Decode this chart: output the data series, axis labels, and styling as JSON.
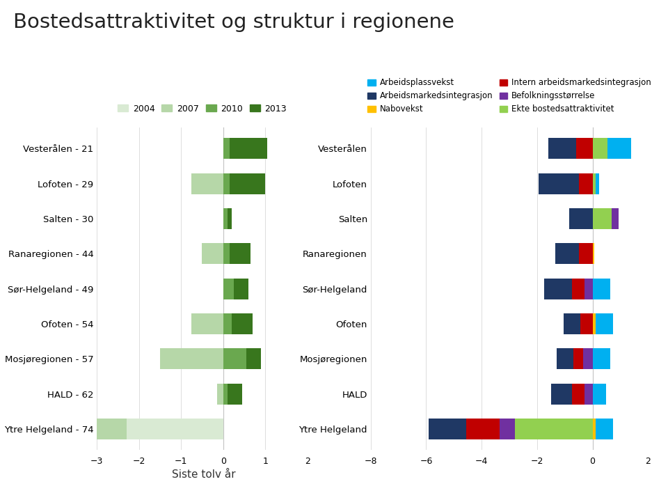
{
  "title": "Bostedsattraktivitet og struktur i regionene",
  "regions_left": [
    "Vesterålen - 21",
    "Lofoten - 29",
    "Salten - 30",
    "Ranaregionen - 44",
    "Sør-Helgeland - 49",
    "Ofoten - 54",
    "Mosjøregionen - 57",
    "HALD - 62",
    "Ytre Helgeland - 74"
  ],
  "regions_right": [
    "Vesterålen",
    "Lofoten",
    "Salten",
    "Ranaregionen",
    "Sør-Helgeland",
    "Ofoten",
    "Mosjøregionen",
    "HALD",
    "Ytre Helgeland"
  ],
  "left_legend_labels": [
    "2004",
    "2007",
    "2010",
    "2013"
  ],
  "left_legend_colors": [
    "#d9ead3",
    "#b6d7a8",
    "#6aa84f",
    "#38761d"
  ],
  "right_legend_labels": [
    "Arbeidsplassvekst",
    "Arbeidsmarkedsintegrasjon",
    "Nabovekst",
    "Intern arbeidsmarkedsintegrasjon",
    "Befolkningsstørrelse",
    "Ekte bostedsattraktivitet"
  ],
  "right_legend_colors": [
    "#00b0f0",
    "#1f3864",
    "#ffc000",
    "#c00000",
    "#7030a0",
    "#92d050"
  ],
  "left_data": {
    "2004": [
      0.0,
      0.0,
      0.0,
      0.0,
      0.0,
      0.0,
      0.0,
      0.0,
      -2.3
    ],
    "2007": [
      0.0,
      -0.75,
      0.0,
      -0.5,
      0.0,
      -0.75,
      -1.5,
      -0.15,
      -1.8
    ],
    "2010": [
      0.15,
      0.15,
      0.1,
      0.15,
      0.25,
      0.2,
      0.55,
      0.1,
      0.0
    ],
    "2013": [
      0.9,
      0.85,
      0.1,
      0.5,
      0.35,
      0.5,
      0.35,
      0.35,
      0.0
    ]
  },
  "right_data": {
    "Ekte bostedsattraktivitet": [
      0.55,
      0.1,
      0.7,
      0.0,
      0.0,
      0.0,
      0.0,
      0.0,
      -2.8
    ],
    "Befolkningsstørrelse": [
      0.0,
      0.0,
      0.25,
      0.0,
      -0.3,
      0.0,
      -0.35,
      -0.3,
      -0.55
    ],
    "Intern arbeidsmarkedsintegrasjon": [
      -0.6,
      -0.5,
      0.0,
      -0.5,
      -0.45,
      -0.45,
      -0.35,
      -0.45,
      -1.2
    ],
    "Arbeidsmarkedsintegrasjon": [
      -1.0,
      -1.45,
      -0.85,
      -0.85,
      -1.0,
      -0.6,
      -0.6,
      -0.75,
      -1.35
    ],
    "Nabovekst": [
      0.0,
      0.0,
      0.0,
      0.05,
      0.0,
      0.1,
      0.0,
      0.0,
      0.1
    ],
    "Arbeidsplassvekst": [
      0.85,
      0.15,
      0.0,
      0.0,
      0.65,
      0.65,
      0.65,
      0.5,
      0.65
    ]
  },
  "left_xlim": [
    -3,
    2
  ],
  "right_xlim": [
    -8,
    2
  ],
  "xlabel_center": "Siste tolv år",
  "background_color": "#ffffff",
  "grid_color": "#d0d0d0"
}
